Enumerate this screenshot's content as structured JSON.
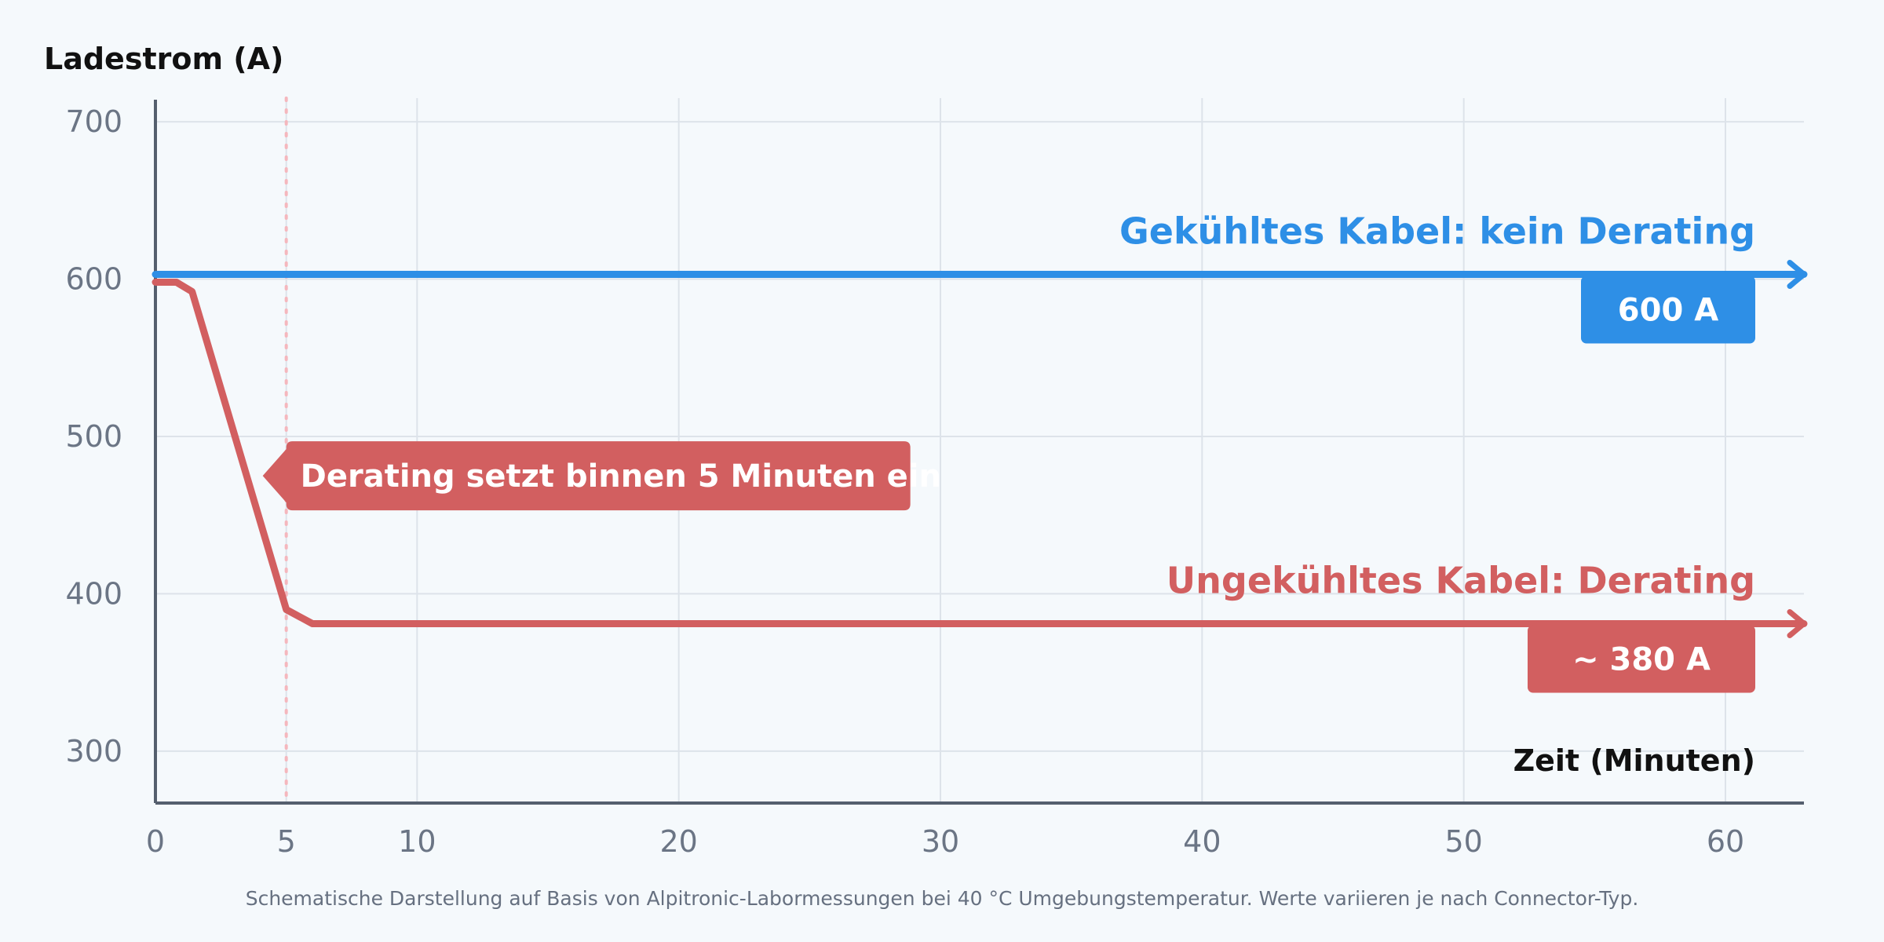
{
  "chart_data": {
    "type": "line",
    "ylabel": "Ladestrom (A)",
    "xlabel": "Zeit (Minuten)",
    "xlim": [
      0,
      63
    ],
    "ylim": [
      267,
      715
    ],
    "x_ticks": [
      0,
      5,
      10,
      20,
      30,
      40,
      50,
      60
    ],
    "y_ticks": [
      300,
      400,
      500,
      600,
      700
    ],
    "grid": true,
    "series": [
      {
        "name": "Gekühltes Kabel: kein Derating",
        "color": "#2e8fe6",
        "x": [
          0,
          63
        ],
        "y": [
          603,
          603
        ],
        "end_label": "600 A"
      },
      {
        "name": "Ungekühltes Kabel: Derating",
        "color": "#d25f60",
        "x": [
          0,
          0.8,
          1.4,
          5,
          6,
          63
        ],
        "y": [
          598,
          598,
          592,
          390,
          381,
          381
        ],
        "end_label": "~ 380 A"
      }
    ],
    "annotations": [
      {
        "type": "vline",
        "x": 5,
        "color": "#f5b7bd"
      },
      {
        "type": "callout",
        "x": 5,
        "y": 475,
        "text": "Derating setzt binnen 5 Minuten ein",
        "color": "#d25f60"
      }
    ],
    "footnote": "Schematische Darstellung auf Basis von Alpitronic-Labormessungen bei 40 °C Umgebungstemperatur. Werte variieren je nach Connector-Typ."
  }
}
